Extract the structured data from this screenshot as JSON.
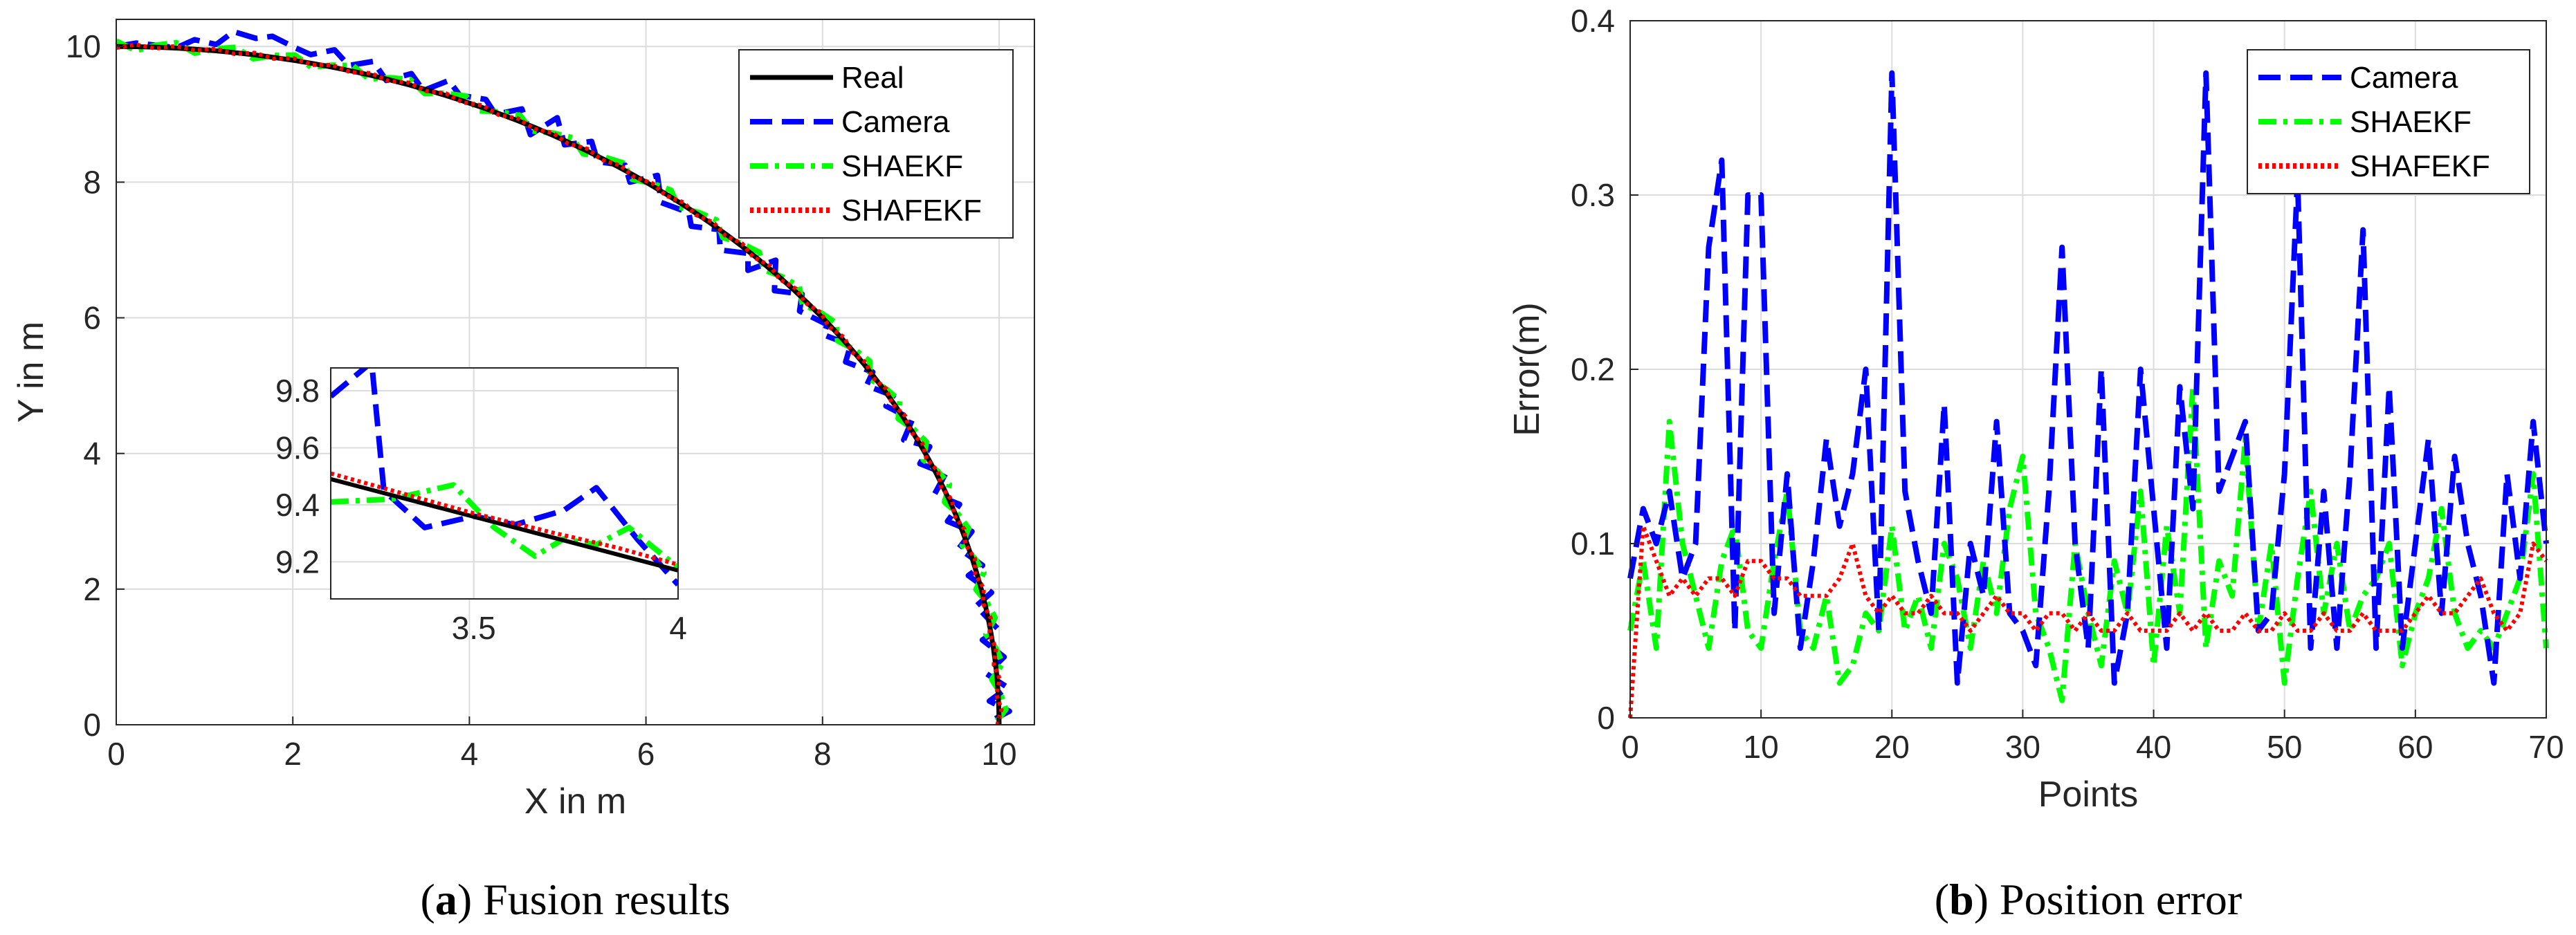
{
  "chart_data": [
    {
      "type": "line",
      "caption_label": "a",
      "caption_text": "Fusion results",
      "xlabel": "X in m",
      "ylabel": "Y in m",
      "xlim": [
        0,
        10.4
      ],
      "ylim": [
        0,
        10.4
      ],
      "xticks": [
        0,
        2,
        4,
        6,
        8,
        10
      ],
      "yticks": [
        0,
        2,
        4,
        6,
        8,
        10
      ],
      "grid": true,
      "legend_position": "top-right",
      "series": [
        {
          "name": "Real",
          "color": "#000000",
          "style": "solid"
        },
        {
          "name": "Camera",
          "color": "#0000ff",
          "style": "dashed"
        },
        {
          "name": "SHAEKF",
          "color": "#00ff00",
          "style": "dashdot"
        },
        {
          "name": "SHAFEKF",
          "color": "#ff0000",
          "style": "dotted"
        }
      ],
      "trajectory": {
        "shape": "quarter-circle",
        "radius": 10,
        "theta_start_deg": 90,
        "theta_end_deg": 0,
        "points": 71
      },
      "camera_y": [
        10.0,
        10.05,
        10.02,
        9.98,
        10.1,
        10.03,
        10.22,
        10.12,
        10.15,
        9.98,
        9.88,
        9.95,
        9.72,
        9.78,
        9.5,
        9.6,
        9.35,
        9.5,
        9.28,
        9.22,
        9.0,
        9.08,
        8.7,
        8.95,
        8.55,
        8.6,
        8.3,
        8.25,
        8.0,
        8.1,
        7.7,
        7.55,
        7.35,
        7.3,
        7.0,
        6.95,
        6.7,
        6.85,
        6.4,
        6.35,
        6.1,
        5.9,
        5.75,
        5.6,
        5.35,
        5.2,
        5.0,
        4.85,
        4.7,
        4.5,
        4.2,
        4.1,
        3.85,
        3.7,
        3.4,
        3.25,
        3.0,
        2.85,
        2.6,
        2.35,
        2.2,
        1.95,
        1.75,
        1.4,
        1.25,
        1.0,
        0.75,
        0.55,
        0.35,
        0.2,
        0.05
      ],
      "inset": {
        "xlim": [
          3.15,
          4.0
        ],
        "ylim": [
          9.07,
          9.88
        ],
        "xticks": [
          3.5,
          4
        ],
        "yticks": [
          9.2,
          9.4,
          9.6,
          9.8
        ],
        "real": {
          "x": [
            3.15,
            4.0
          ],
          "y": [
            9.49,
            9.17
          ]
        },
        "camera": {
          "x": [
            3.15,
            3.25,
            3.28,
            3.38,
            3.5,
            3.6,
            3.72,
            3.8,
            3.9,
            4.0
          ],
          "y": [
            9.78,
            9.9,
            9.45,
            9.32,
            9.36,
            9.33,
            9.38,
            9.46,
            9.28,
            9.12
          ]
        },
        "shaekf": {
          "x": [
            3.15,
            3.3,
            3.45,
            3.55,
            3.65,
            3.72,
            3.8,
            3.88,
            4.0
          ],
          "y": [
            9.41,
            9.42,
            9.47,
            9.32,
            9.22,
            9.28,
            9.26,
            9.32,
            9.18
          ]
        },
        "shafekf": {
          "x": [
            3.15,
            3.3,
            3.5,
            3.7,
            3.85,
            4.0
          ],
          "y": [
            9.51,
            9.45,
            9.37,
            9.3,
            9.25,
            9.19
          ]
        }
      }
    },
    {
      "type": "line",
      "caption_label": "b",
      "caption_text": "Position error",
      "xlabel": "Points",
      "ylabel": "Error(m)",
      "xlim": [
        0,
        70
      ],
      "ylim": [
        0,
        0.4
      ],
      "xticks": [
        0,
        10,
        20,
        30,
        40,
        50,
        60,
        70
      ],
      "yticks": [
        0,
        0.1,
        0.2,
        0.3,
        0.4
      ],
      "grid": true,
      "legend_position": "top-right",
      "series": [
        {
          "name": "Camera",
          "color": "#0000ff",
          "style": "dashed",
          "values": [
            0.08,
            0.12,
            0.1,
            0.13,
            0.08,
            0.1,
            0.27,
            0.32,
            0.05,
            0.3,
            0.3,
            0.06,
            0.14,
            0.04,
            0.09,
            0.16,
            0.11,
            0.14,
            0.2,
            0.05,
            0.37,
            0.13,
            0.09,
            0.06,
            0.18,
            0.02,
            0.1,
            0.07,
            0.17,
            0.06,
            0.05,
            0.03,
            0.13,
            0.27,
            0.1,
            0.04,
            0.2,
            0.02,
            0.06,
            0.2,
            0.12,
            0.04,
            0.19,
            0.12,
            0.37,
            0.13,
            0.15,
            0.17,
            0.05,
            0.06,
            0.14,
            0.31,
            0.04,
            0.13,
            0.04,
            0.14,
            0.28,
            0.04,
            0.19,
            0.04,
            0.1,
            0.16,
            0.06,
            0.15,
            0.1,
            0.07,
            0.02,
            0.14,
            0.08,
            0.17,
            0.1
          ]
        },
        {
          "name": "SHAEKF",
          "color": "#00ff00",
          "style": "dashdot",
          "values": [
            0.05,
            0.09,
            0.04,
            0.17,
            0.1,
            0.07,
            0.04,
            0.09,
            0.11,
            0.05,
            0.04,
            0.09,
            0.13,
            0.05,
            0.04,
            0.07,
            0.02,
            0.03,
            0.06,
            0.05,
            0.11,
            0.05,
            0.07,
            0.04,
            0.1,
            0.08,
            0.04,
            0.09,
            0.06,
            0.12,
            0.15,
            0.06,
            0.04,
            0.01,
            0.1,
            0.06,
            0.03,
            0.09,
            0.06,
            0.13,
            0.03,
            0.11,
            0.06,
            0.19,
            0.04,
            0.09,
            0.07,
            0.16,
            0.05,
            0.1,
            0.02,
            0.08,
            0.13,
            0.06,
            0.1,
            0.05,
            0.07,
            0.08,
            0.1,
            0.03,
            0.06,
            0.08,
            0.12,
            0.06,
            0.04,
            0.05,
            0.04,
            0.06,
            0.08,
            0.14,
            0.04
          ]
        },
        {
          "name": "SHAFEKF",
          "color": "#ff0000",
          "style": "dotted",
          "values": [
            0.0,
            0.11,
            0.09,
            0.07,
            0.08,
            0.07,
            0.08,
            0.08,
            0.07,
            0.09,
            0.09,
            0.08,
            0.08,
            0.07,
            0.07,
            0.07,
            0.08,
            0.1,
            0.07,
            0.06,
            0.07,
            0.06,
            0.06,
            0.07,
            0.06,
            0.06,
            0.05,
            0.06,
            0.07,
            0.06,
            0.06,
            0.05,
            0.06,
            0.06,
            0.05,
            0.06,
            0.05,
            0.05,
            0.06,
            0.05,
            0.05,
            0.05,
            0.06,
            0.05,
            0.06,
            0.05,
            0.05,
            0.06,
            0.05,
            0.05,
            0.06,
            0.05,
            0.05,
            0.06,
            0.05,
            0.05,
            0.06,
            0.05,
            0.05,
            0.05,
            0.06,
            0.07,
            0.06,
            0.06,
            0.07,
            0.08,
            0.06,
            0.05,
            0.06,
            0.1,
            0.09
          ]
        }
      ]
    }
  ]
}
